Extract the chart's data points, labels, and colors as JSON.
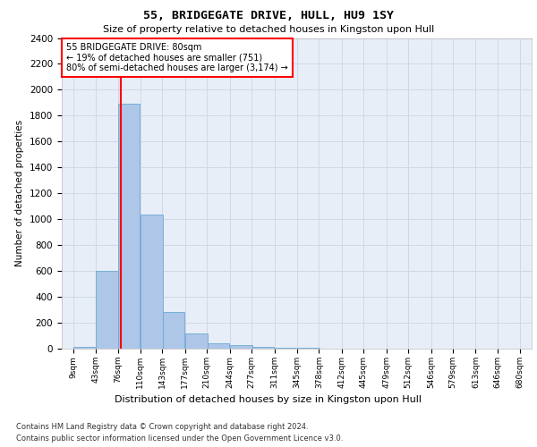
{
  "title": "55, BRIDGEGATE DRIVE, HULL, HU9 1SY",
  "subtitle": "Size of property relative to detached houses in Kingston upon Hull",
  "xlabel": "Distribution of detached houses by size in Kingston upon Hull",
  "ylabel": "Number of detached properties",
  "footer_line1": "Contains HM Land Registry data © Crown copyright and database right 2024.",
  "footer_line2": "Contains public sector information licensed under the Open Government Licence v3.0.",
  "bins": [
    9,
    43,
    76,
    110,
    143,
    177,
    210,
    244,
    277,
    311,
    345,
    378,
    412,
    445,
    479,
    512,
    546,
    579,
    613,
    646,
    680
  ],
  "bar_heights": [
    15,
    600,
    1890,
    1035,
    285,
    115,
    40,
    25,
    15,
    5,
    5,
    0,
    0,
    0,
    0,
    0,
    0,
    0,
    0,
    0
  ],
  "bar_color": "#aec6e8",
  "bar_edgecolor": "#6aaad4",
  "property_size": 80,
  "annotation_line1": "55 BRIDGEGATE DRIVE: 80sqm",
  "annotation_line2": "← 19% of detached houses are smaller (751)",
  "annotation_line3": "80% of semi-detached houses are larger (3,174) →",
  "annotation_box_edgecolor": "red",
  "vline_color": "red",
  "ylim": [
    0,
    2400
  ],
  "yticks": [
    0,
    200,
    400,
    600,
    800,
    1000,
    1200,
    1400,
    1600,
    1800,
    2000,
    2200,
    2400
  ],
  "grid_color": "#d0d8e8",
  "background_color": "#e8eef8"
}
